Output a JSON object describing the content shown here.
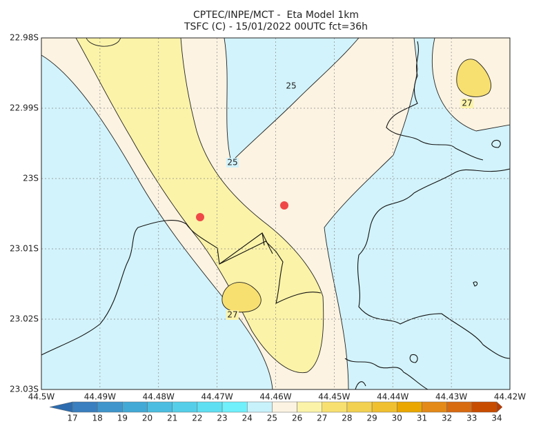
{
  "header": {
    "title": "CPTEC/INPE/MCT -  Eta Model 1km",
    "subtitle": "TSFC (C) - 15/01/2022 00UTC fct=36h"
  },
  "axes": {
    "lat_labels": [
      "22.98S",
      "22.99S",
      "23S",
      "23.01S",
      "23.02S",
      "23.03S"
    ],
    "lon_labels": [
      "44.5W",
      "44.49W",
      "44.48W",
      "44.47W",
      "44.46W",
      "44.45W",
      "44.44W",
      "44.43W",
      "44.42W"
    ]
  },
  "contour_labels": [
    "25",
    "25",
    "27",
    "27"
  ],
  "colorbar": {
    "labels": [
      17,
      18,
      19,
      20,
      21,
      22,
      23,
      24,
      25,
      26,
      27,
      28,
      29,
      30,
      31,
      32,
      33,
      34
    ]
  }
}
